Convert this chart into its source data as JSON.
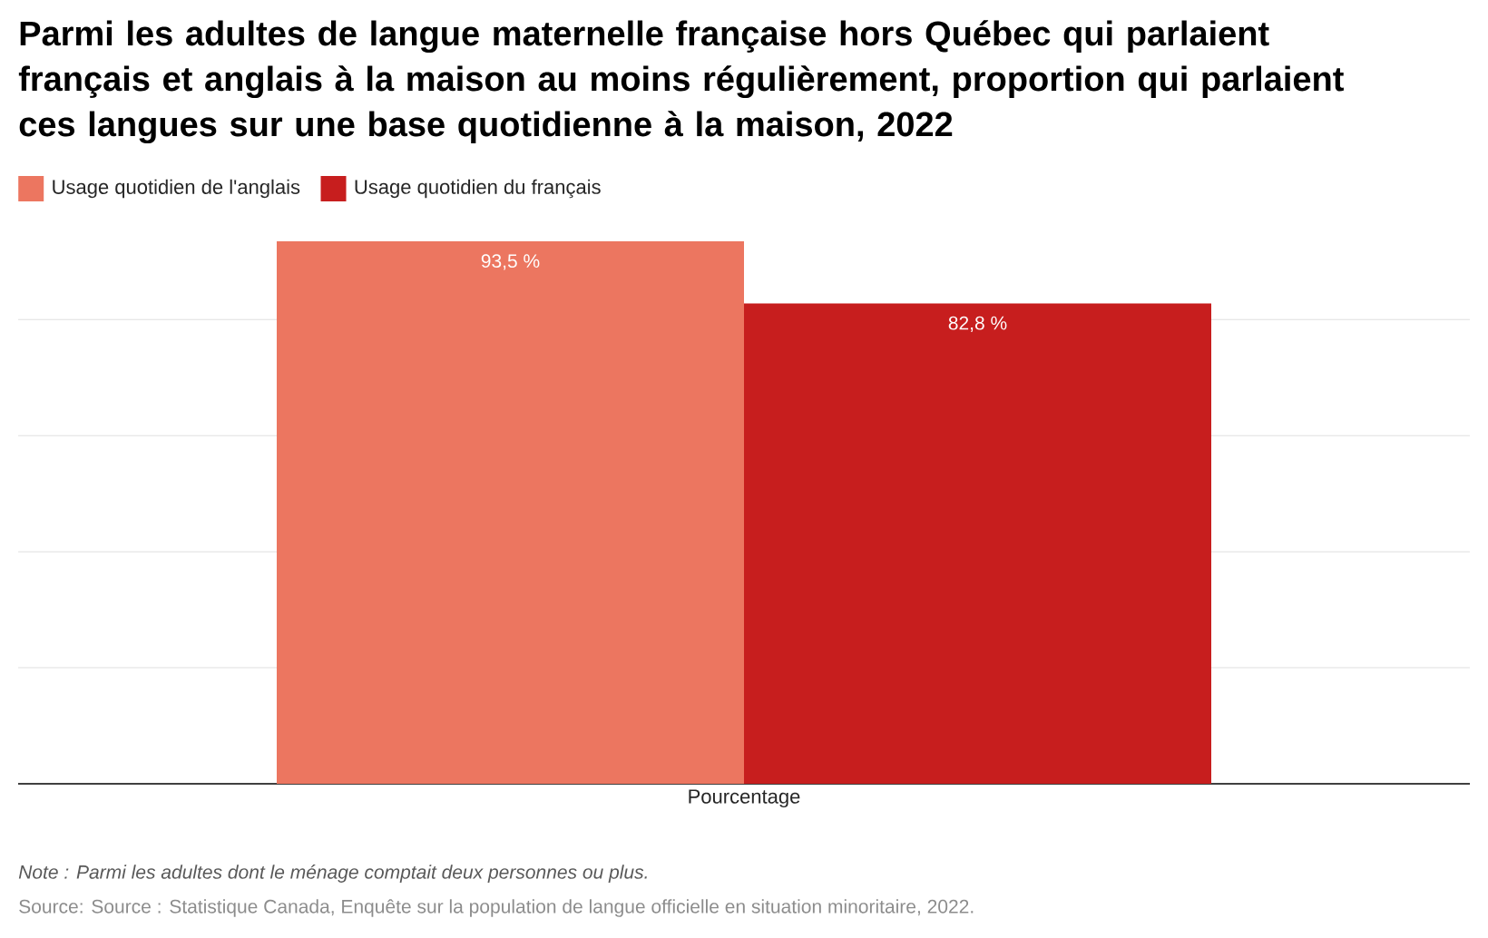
{
  "chart_data": {
    "type": "bar",
    "title": "Parmi les adultes de langue maternelle française hors Québec qui parlaient français et anglais à la maison au moins régulièrement, proportion qui parlaient ces langues sur une base quotidienne à la maison, 2022",
    "xlabel": "Pourcentage",
    "categories": [
      null
    ],
    "series": [
      {
        "name": "Usage quotidien de l'anglais",
        "color": "#ec7660",
        "values": [
          93.5
        ],
        "value_labels": [
          "93,5 %"
        ]
      },
      {
        "name": "Usage quotidien du français",
        "color": "#c71e1e",
        "values": [
          82.8
        ],
        "value_labels": [
          "82,8 %"
        ]
      }
    ],
    "ylim": [
      0,
      93.5
    ],
    "yticks": [
      {
        "value": 20,
        "label": null
      },
      {
        "value": 40,
        "label": null
      },
      {
        "value": 60,
        "label": null
      },
      {
        "value": 80,
        "label": null
      }
    ],
    "grid": "y",
    "legend": "top left",
    "annotations": [
      "*Note : Parmi les adultes dont le ménage comptait deux personnes ou plus.*",
      "Source: Source : Statistique Canada, Enquête sur la population de langue officielle en situation minoritaire, 2022."
    ]
  }
}
